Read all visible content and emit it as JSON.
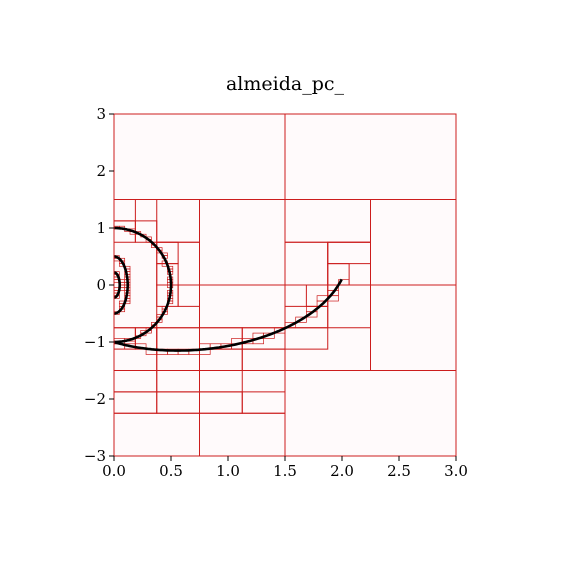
{
  "chart_data": {
    "type": "scatter",
    "title": "almeida_pc_",
    "xlabel": "",
    "ylabel": "",
    "xlim": [
      0,
      3
    ],
    "ylim": [
      -3,
      3
    ],
    "x_ticks": [
      "0.0",
      "0.5",
      "1.0",
      "1.5",
      "2.0",
      "2.5",
      "3.0"
    ],
    "y_ticks": [
      "3",
      "2",
      "1",
      "0",
      "−1",
      "−2",
      "−3"
    ],
    "grid": false,
    "legend": "none",
    "plot_background": "#fffafb",
    "cell_color": "#cc1c1c",
    "curve_color": "#000000",
    "cells": [
      [
        0,
        1.5,
        1.5,
        3
      ],
      [
        1.5,
        1.5,
        3,
        3
      ],
      [
        0.75,
        0,
        1.5,
        1.5
      ],
      [
        1.5,
        0.75,
        2.25,
        1.5
      ],
      [
        2.25,
        0,
        3,
        1.5
      ],
      [
        0.75,
        -0.75,
        1.5,
        0
      ],
      [
        1.5,
        0,
        1.875,
        0.75
      ],
      [
        1.875,
        0,
        2.25,
        0.75
      ],
      [
        2.25,
        -1.5,
        3,
        0
      ],
      [
        1.875,
        -0.75,
        2.25,
        0
      ],
      [
        1.5,
        -3,
        3,
        -1.5
      ],
      [
        0,
        -3,
        0.75,
        -2.25
      ],
      [
        0.75,
        -3,
        1.5,
        -2.25
      ],
      [
        0.375,
        0.75,
        0.75,
        1.5
      ],
      [
        0.375,
        -0.75,
        0.75,
        0
      ],
      [
        0.375,
        0,
        0.75,
        0.75
      ],
      [
        0,
        -1.5,
        0.375,
        -0.75
      ],
      [
        0.375,
        -1.5,
        0.75,
        -0.75
      ],
      [
        0,
        -2.25,
        0.375,
        -1.875
      ],
      [
        0.375,
        -2.25,
        0.75,
        -1.875
      ],
      [
        0.75,
        -2.25,
        1.125,
        -1.875
      ],
      [
        1.125,
        -2.25,
        1.5,
        -1.875
      ],
      [
        0,
        1.125,
        0.1875,
        1.5
      ],
      [
        0.1875,
        0.75,
        0.375,
        1.125
      ],
      [
        0,
        0.75,
        0.1875,
        1.125
      ],
      [
        0.375,
        0.375,
        0.5625,
        0.75
      ],
      [
        0.375,
        0,
        0.5625,
        0.375
      ],
      [
        0.375,
        -0.375,
        0.5625,
        0
      ],
      [
        0.5625,
        -0.375,
        0.75,
        0
      ],
      [
        0.1875,
        -1.125,
        0.375,
        -0.75
      ],
      [
        0,
        -1.125,
        0.1875,
        -0.75
      ],
      [
        0.75,
        -1.125,
        1.125,
        -0.75
      ],
      [
        1.125,
        -1.125,
        1.5,
        -0.75
      ],
      [
        1.5,
        -1.125,
        1.875,
        -0.75
      ],
      [
        1.5,
        -0.75,
        1.875,
        -0.375
      ],
      [
        1.6875,
        -0.375,
        1.875,
        0
      ],
      [
        1.875,
        0.375,
        2.25,
        0.75
      ],
      [
        1.875,
        0,
        2.0625,
        0.375
      ],
      [
        0.75,
        -1.5,
        1.125,
        -1.125
      ],
      [
        1.125,
        -1.5,
        1.5,
        -1.125
      ],
      [
        0.375,
        -1.875,
        0.75,
        -1.5
      ],
      [
        0.75,
        -1.875,
        1.125,
        -1.5
      ],
      [
        0,
        -1.875,
        0.375,
        -1.5
      ]
    ],
    "curve_segments": [
      {
        "r0": 1.0,
        "r1": 2.0,
        "a0": 1.5708,
        "a1": -0.05,
        "fn": "spiral"
      },
      {
        "rx": 0.5,
        "ry": 1.0,
        "a0": -1.5708,
        "a1": 1.5708,
        "fn": "ellipse_full"
      },
      {
        "rx": 0.12,
        "ry": 0.5,
        "a0": -1.5708,
        "a1": 1.5708,
        "fn": "ellipse"
      },
      {
        "rx": 0.05,
        "ry": 0.22,
        "a0": -1.5708,
        "a1": 1.5708,
        "fn": "ellipse"
      }
    ]
  }
}
